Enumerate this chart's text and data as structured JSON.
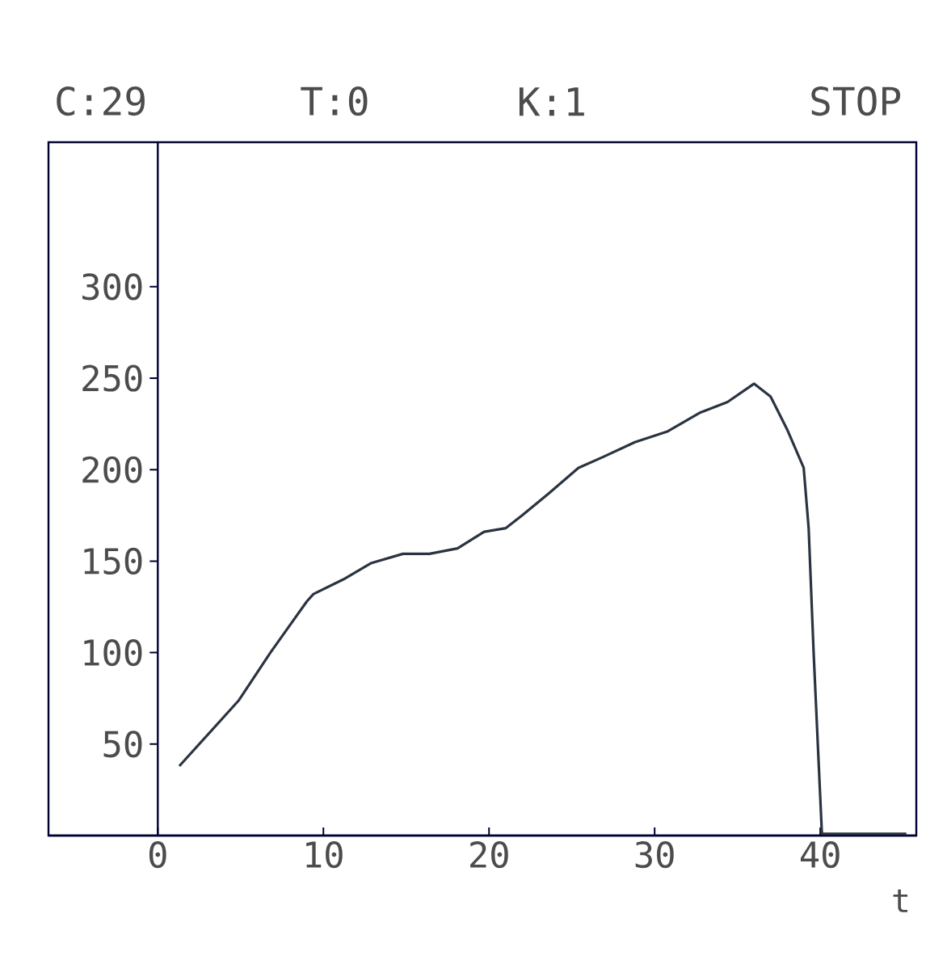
{
  "chart_data": {
    "type": "line",
    "xlabel": "t",
    "annotations": [
      "C:29",
      "T:0",
      "K:1",
      "STOP"
    ],
    "x": [
      1.3,
      4.9,
      6.8,
      9.0,
      9.4,
      11.2,
      12.9,
      14.8,
      16.4,
      18.1,
      19.7,
      21.0,
      22.0,
      23.6,
      25.4,
      26.9,
      28.8,
      30.8,
      32.7,
      34.4,
      36.0,
      37.0,
      38.0,
      39.0,
      39.3,
      39.6,
      40.1,
      45.2
    ],
    "series": [
      {
        "color": "#2a3440",
        "values": [
          38,
          74,
          100,
          128,
          132,
          140,
          149,
          154,
          154,
          157,
          166,
          168,
          175,
          187,
          201,
          207,
          215,
          221,
          231,
          237,
          247,
          240,
          222,
          201,
          168,
          100,
          1,
          1
        ]
      }
    ],
    "xlim": [
      -6.6,
      45.8
    ],
    "ylim": [
      0,
      379
    ],
    "xticks": [
      0,
      10,
      20,
      30,
      40
    ],
    "yticks": [
      50,
      100,
      150,
      200,
      250,
      300
    ],
    "marker": "none",
    "line_style": "solid"
  }
}
